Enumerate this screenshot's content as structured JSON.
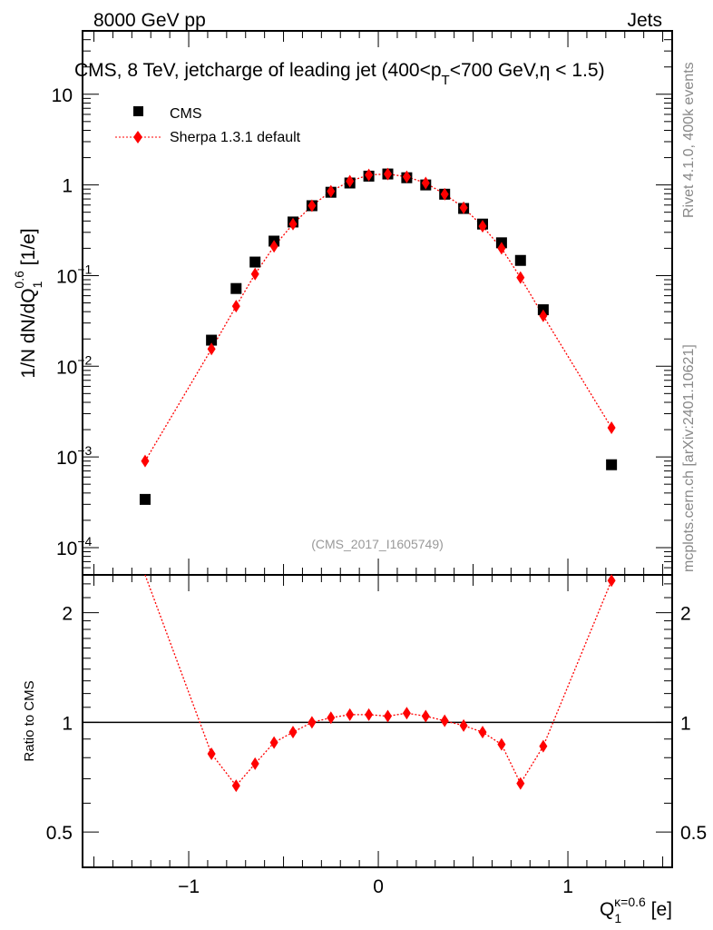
{
  "chart_data": {
    "type": "scatter",
    "header_left": "8000 GeV pp",
    "header_right": "Jets",
    "title": "CMS, 8 TeV, jetcharge of leading jet (400<p",
    "title_sub": "T",
    "title_end": "<700 GeV,η < 1.5)",
    "ylabel": "1/N dN/dQ",
    "ylabel_sub": "1",
    "ylabel_sup": "0.6",
    "ylabel_unit": " [1/e]",
    "xlabel": "Q",
    "xlabel_sub": "1",
    "xlabel_sup": "κ=0.6",
    "xlabel_unit": " [e]",
    "ratio_ylabel": "Ratio to CMS",
    "side_text_1": "Rivet 4.1.0,  400k events",
    "side_text_2": "mcplots.cern.ch [arXiv:2401.10621]",
    "analysis_id": "(CMS_2017_I1605749)",
    "xlim": [
      -1.56,
      1.55
    ],
    "ylim": [
      5e-05,
      50
    ],
    "yscale": "log",
    "ratio_ylim": [
      0.4,
      2.54
    ],
    "x_ticks": [
      {
        "v": -1,
        "label": "−1"
      },
      {
        "v": 0,
        "label": "0"
      },
      {
        "v": 1,
        "label": "1"
      }
    ],
    "y_ticks": [
      {
        "v": 10,
        "label": "10"
      },
      {
        "v": 1,
        "label": "1"
      },
      {
        "v": 0.1,
        "label": "10",
        "sup": "−1"
      },
      {
        "v": 0.01,
        "label": "10",
        "sup": "−2"
      },
      {
        "v": 0.001,
        "label": "10",
        "sup": "−3"
      },
      {
        "v": 0.0001,
        "label": "10",
        "sup": "−4"
      }
    ],
    "ratio_ticks": [
      {
        "v": 2,
        "label": "2"
      },
      {
        "v": 1,
        "label": "1"
      },
      {
        "v": 0.5,
        "label": "0.5"
      }
    ],
    "legend_position": "top-left",
    "x": [
      -1.23,
      -0.88,
      -0.75,
      -0.65,
      -0.55,
      -0.45,
      -0.35,
      -0.25,
      -0.15,
      -0.05,
      0.05,
      0.15,
      0.25,
      0.35,
      0.45,
      0.55,
      0.65,
      0.75,
      0.87,
      1.23
    ],
    "series": [
      {
        "name": "CMS",
        "color": "#000000",
        "marker": "square",
        "values": [
          0.00034,
          0.0194,
          0.072,
          0.141,
          0.24,
          0.39,
          0.59,
          0.83,
          1.05,
          1.25,
          1.32,
          1.2,
          1.0,
          0.79,
          0.55,
          0.37,
          0.23,
          0.147,
          0.042,
          0.00082
        ]
      },
      {
        "name": "Sherpa 1.3.1 default",
        "color": "#ff0000",
        "marker": "diamond",
        "values": [
          0.0009,
          0.0155,
          0.046,
          0.104,
          0.21,
          0.37,
          0.59,
          0.85,
          1.1,
          1.29,
          1.32,
          1.23,
          1.05,
          0.79,
          0.56,
          0.35,
          0.2,
          0.095,
          0.036,
          0.0021
        ],
        "ratio": [
          2.63,
          0.82,
          0.67,
          0.77,
          0.88,
          0.94,
          1.0,
          1.03,
          1.05,
          1.05,
          1.04,
          1.06,
          1.04,
          1.01,
          0.98,
          0.94,
          0.87,
          0.68,
          0.86,
          2.45
        ]
      }
    ]
  }
}
